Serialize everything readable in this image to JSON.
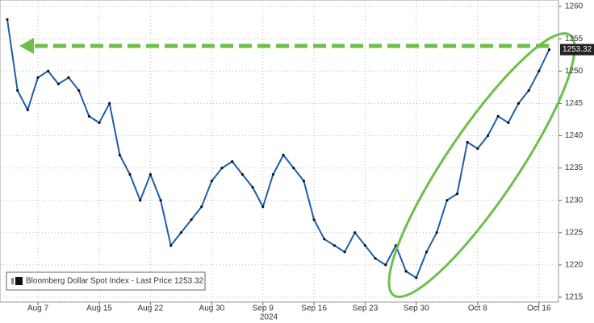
{
  "chart_data": {
    "type": "line",
    "categories": [
      null,
      null,
      null,
      "Aug 7",
      null,
      null,
      null,
      null,
      null,
      "Aug 15",
      null,
      null,
      null,
      null,
      "Aug 22",
      null,
      null,
      null,
      null,
      null,
      "Aug 30",
      null,
      null,
      null,
      null,
      "Sep 9",
      null,
      null,
      null,
      null,
      "Sep 16",
      null,
      null,
      null,
      null,
      "Sep 23",
      null,
      null,
      null,
      null,
      "Sep 30",
      null,
      null,
      null,
      null,
      null,
      "Oct 8",
      null,
      null,
      null,
      null,
      null,
      "Oct 16",
      null
    ],
    "x_sublabel": "2024",
    "series": [
      {
        "name": "Bloomberg Dollar Spot Index - Last Price 1253.32",
        "color": "#1f5fa6",
        "values": [
          1258,
          1247,
          1244,
          1249,
          1250,
          1248,
          1249,
          1247,
          1243,
          1242,
          1245,
          1237,
          1234,
          1230,
          1234,
          1230,
          1223,
          1225,
          1227,
          1229,
          1233,
          1235,
          1236,
          1234,
          1232,
          1229,
          1234,
          1237,
          1235,
          1233,
          1227,
          1224,
          1223,
          1222,
          1225,
          1223,
          1221,
          1220,
          1223,
          1219,
          1218,
          1222,
          1225,
          1230,
          1231,
          1239,
          1238,
          1240,
          1243,
          1242,
          1245,
          1247,
          1250,
          1253.32
        ]
      }
    ],
    "ylim": [
      1214.25,
      1261
    ],
    "yticks": [
      1215,
      1220,
      1225,
      1230,
      1235,
      1240,
      1245,
      1250,
      1255,
      1260
    ],
    "grid": true
  }
}
